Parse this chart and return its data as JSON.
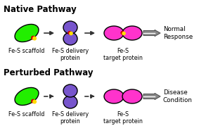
{
  "bg_color": "#ffffff",
  "title_native": "Native Pathway",
  "title_perturbed": "Perturbed Pathway",
  "label_scaffold": "Fe-S scaffold",
  "label_delivery": "Fe-S delivery\nprotein",
  "label_target": "Fe-S\ntarget protein",
  "label_normal": "Normal\nResponse",
  "label_disease": "Disease\nCondition",
  "color_scaffold": "#22ee00",
  "color_scaffold_outline": "#000000",
  "color_delivery": "#7755cc",
  "color_delivery_outline": "#000000",
  "color_target_native": "#ff33cc",
  "color_target_perturbed": "#ff33cc",
  "color_target_outline": "#000000",
  "color_red_dot": "#cc0000",
  "color_yellow_dot": "#ffdd00",
  "arrow_color": "#333333",
  "double_arrow_fill": "#888888",
  "double_arrow_outline": "#555555",
  "label_fontsize": 5.8,
  "title_fontsize": 8.5
}
